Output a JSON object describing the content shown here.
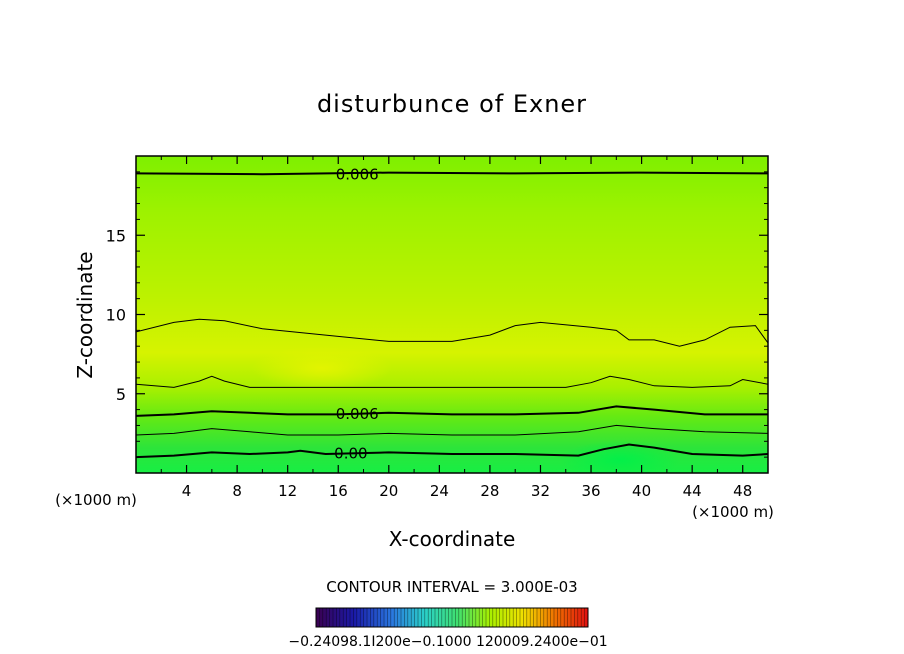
{
  "chart_data": {
    "type": "heatmap",
    "title": "disturbunce of Exner",
    "xlabel": "X-coordinate",
    "ylabel": "Z-coordinate",
    "x_unit": "(×1000 m)",
    "y_unit": "(×1000 m)",
    "xlim": [
      0,
      50
    ],
    "ylim": [
      0,
      20
    ],
    "x_ticks": [
      4,
      8,
      12,
      16,
      20,
      24,
      28,
      32,
      36,
      40,
      44,
      48
    ],
    "y_ticks": [
      5,
      10,
      15
    ],
    "contour_interval_label": "CONTOUR INTERVAL = 3.000E-03",
    "contour_labels": [
      {
        "text": "0.006",
        "x": 17.5,
        "z": 18.9
      },
      {
        "text": "0.006",
        "x": 17.5,
        "z": 3.8
      },
      {
        "text": "0.00",
        "x": 17.0,
        "z": 1.3
      }
    ],
    "contours": [
      {
        "name": "upper",
        "heavy": true,
        "points": [
          [
            0,
            18.9
          ],
          [
            10,
            18.85
          ],
          [
            20,
            18.95
          ],
          [
            30,
            18.9
          ],
          [
            40,
            18.95
          ],
          [
            50,
            18.9
          ]
        ]
      },
      {
        "name": "mid-upper",
        "heavy": false,
        "points": [
          [
            0,
            8.9
          ],
          [
            3,
            9.5
          ],
          [
            5,
            9.7
          ],
          [
            7,
            9.6
          ],
          [
            10,
            9.1
          ],
          [
            15,
            8.7
          ],
          [
            20,
            8.3
          ],
          [
            25,
            8.3
          ],
          [
            28,
            8.7
          ],
          [
            30,
            9.3
          ],
          [
            32,
            9.5
          ],
          [
            36,
            9.2
          ],
          [
            38,
            9.0
          ],
          [
            39,
            8.4
          ],
          [
            41,
            8.4
          ],
          [
            43,
            8.0
          ],
          [
            45,
            8.4
          ],
          [
            47,
            9.2
          ],
          [
            49,
            9.3
          ],
          [
            50,
            8.2
          ]
        ]
      },
      {
        "name": "mid-lower",
        "heavy": false,
        "points": [
          [
            0,
            5.6
          ],
          [
            3,
            5.4
          ],
          [
            5,
            5.8
          ],
          [
            6,
            6.1
          ],
          [
            7,
            5.8
          ],
          [
            9,
            5.4
          ],
          [
            12,
            5.4
          ],
          [
            16,
            5.4
          ],
          [
            20,
            5.4
          ],
          [
            25,
            5.4
          ],
          [
            30,
            5.4
          ],
          [
            34,
            5.4
          ],
          [
            36,
            5.7
          ],
          [
            37.5,
            6.1
          ],
          [
            39,
            5.9
          ],
          [
            41,
            5.5
          ],
          [
            44,
            5.4
          ],
          [
            47,
            5.5
          ],
          [
            48,
            5.9
          ],
          [
            50,
            5.6
          ]
        ]
      },
      {
        "name": "heavy-1",
        "heavy": true,
        "points": [
          [
            0,
            3.6
          ],
          [
            3,
            3.7
          ],
          [
            6,
            3.9
          ],
          [
            9,
            3.8
          ],
          [
            12,
            3.7
          ],
          [
            16,
            3.7
          ],
          [
            20,
            3.8
          ],
          [
            25,
            3.7
          ],
          [
            30,
            3.7
          ],
          [
            35,
            3.8
          ],
          [
            38,
            4.2
          ],
          [
            41,
            4.0
          ],
          [
            45,
            3.7
          ],
          [
            50,
            3.7
          ]
        ]
      },
      {
        "name": "lower-thin",
        "heavy": false,
        "points": [
          [
            0,
            2.4
          ],
          [
            3,
            2.5
          ],
          [
            6,
            2.8
          ],
          [
            9,
            2.6
          ],
          [
            12,
            2.4
          ],
          [
            16,
            2.4
          ],
          [
            20,
            2.5
          ],
          [
            25,
            2.4
          ],
          [
            30,
            2.4
          ],
          [
            35,
            2.6
          ],
          [
            38,
            3.0
          ],
          [
            41,
            2.8
          ],
          [
            45,
            2.6
          ],
          [
            50,
            2.5
          ]
        ]
      },
      {
        "name": "heavy-2",
        "heavy": true,
        "points": [
          [
            0,
            1.0
          ],
          [
            3,
            1.1
          ],
          [
            6,
            1.3
          ],
          [
            9,
            1.2
          ],
          [
            12,
            1.3
          ],
          [
            13,
            1.4
          ],
          [
            15,
            1.2
          ],
          [
            20,
            1.3
          ],
          [
            25,
            1.2
          ],
          [
            30,
            1.2
          ],
          [
            35,
            1.1
          ],
          [
            37,
            1.5
          ],
          [
            39,
            1.8
          ],
          [
            41,
            1.6
          ],
          [
            44,
            1.2
          ],
          [
            48,
            1.1
          ],
          [
            50,
            1.2
          ]
        ]
      }
    ],
    "colorbar_labels": "−0.24098.1Ⅰ200e−0.1000 120009.2400e−01",
    "colors": {
      "band_top": "#7cf200",
      "band_yellow": "#d9f200",
      "band_green": "#2ce83a",
      "band_bottom": "#12ee42"
    }
  }
}
